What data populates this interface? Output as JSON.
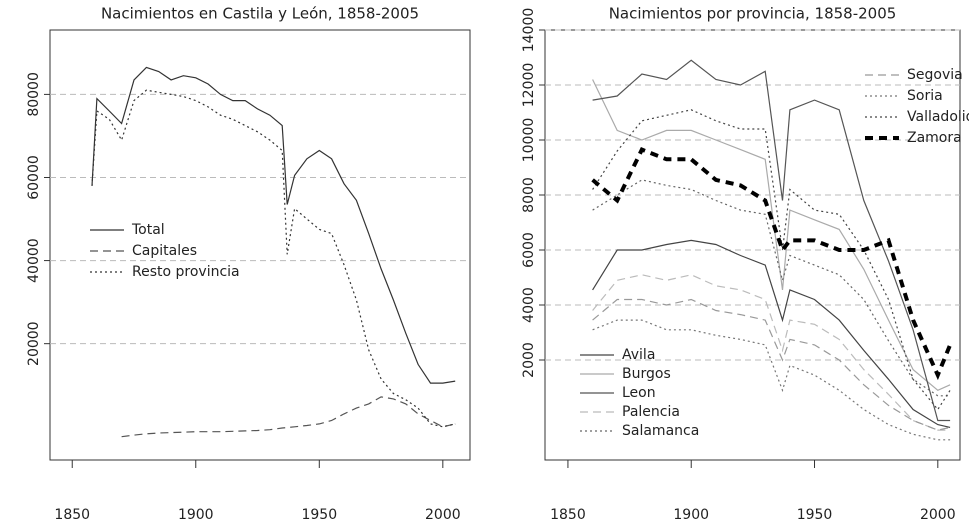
{
  "chart_data": [
    {
      "type": "line",
      "title": "Nacimientos en Castila y León, 1858-2005",
      "x": [
        1858,
        1860,
        1865,
        1870,
        1875,
        1880,
        1885,
        1890,
        1895,
        1900,
        1905,
        1910,
        1915,
        1920,
        1925,
        1930,
        1935,
        1937,
        1940,
        1945,
        1950,
        1955,
        1960,
        1965,
        1970,
        1975,
        1980,
        1985,
        1990,
        1995,
        2000,
        2005
      ],
      "xlim": [
        1841,
        2011
      ],
      "xticks": [
        1850,
        1900,
        1950,
        2000
      ],
      "ylim": [
        -8000,
        95500
      ],
      "yticks": [
        20000,
        40000,
        60000,
        80000
      ],
      "grid": true,
      "legend": "center-left",
      "series": [
        {
          "name": "Total",
          "color": "#333333",
          "style": "solid",
          "values": [
            58000,
            79000,
            76000,
            73000,
            83500,
            86500,
            85500,
            83500,
            84500,
            84000,
            82500,
            80000,
            78500,
            78500,
            76500,
            75000,
            72500,
            53500,
            60500,
            64500,
            66500,
            64500,
            58500,
            54500,
            46500,
            38000,
            30500,
            22500,
            15000,
            10500,
            10500,
            11000
          ]
        },
        {
          "name": "Capitales",
          "color": "#555555",
          "style": "dashed",
          "values": [
            null,
            null,
            null,
            -2400,
            -2000,
            -1700,
            -1500,
            -1400,
            -1300,
            -1200,
            -1200,
            -1200,
            -1100,
            -1000,
            -900,
            -700,
            -300,
            -200,
            0,
            300,
            700,
            1500,
            3100,
            4500,
            5500,
            7200,
            6700,
            5500,
            3100,
            1500,
            0,
            700
          ]
        },
        {
          "name": "Resto provincia",
          "color": "#333333",
          "style": "dotted",
          "values": [
            58000,
            76000,
            74000,
            69000,
            78500,
            81000,
            80500,
            80000,
            79500,
            78500,
            77000,
            75000,
            74000,
            72500,
            71000,
            69000,
            66500,
            41500,
            52500,
            50000,
            47500,
            46500,
            39000,
            30500,
            18500,
            11500,
            8000,
            6500,
            4500,
            700,
            0,
            700
          ]
        }
      ]
    },
    {
      "type": "line",
      "title": "Nacimientos por provincia, 1858-2005",
      "x": [
        1860,
        1870,
        1880,
        1890,
        1900,
        1910,
        1920,
        1930,
        1937,
        1940,
        1950,
        1960,
        1970,
        1980,
        1990,
        2000,
        2005
      ],
      "xlim": [
        1840.7,
        2009
      ],
      "xticks": [
        1850,
        1900,
        1950,
        2000
      ],
      "ylim": [
        -1636,
        14000
      ],
      "yticks": [
        2000,
        4000,
        6000,
        8000,
        10000,
        12000,
        14000
      ],
      "grid": true,
      "series": [
        {
          "name": "Avila",
          "color": "#444444",
          "style": "solid",
          "legend": "bottom-left",
          "values": [
            4550,
            6000,
            6000,
            6200,
            6350,
            6200,
            5800,
            5450,
            3450,
            4550,
            4200,
            3450,
            2350,
            1300,
            200,
            -350,
            -450
          ]
        },
        {
          "name": "Burgos",
          "color": "#aaaaaa",
          "style": "solid",
          "legend": "bottom-left",
          "values": [
            12200,
            10350,
            10000,
            10350,
            10350,
            10000,
            9650,
            9300,
            4550,
            7450,
            7100,
            6750,
            5300,
            3450,
            1650,
            900,
            1100
          ]
        },
        {
          "name": "Leon",
          "color": "#555555",
          "style": "solid",
          "legend": "bottom-left",
          "values": [
            11450,
            11600,
            12400,
            12200,
            12900,
            12200,
            12000,
            12500,
            7800,
            11100,
            11450,
            11100,
            7800,
            5600,
            3100,
            -200,
            -200
          ]
        },
        {
          "name": "Palencia",
          "color": "#bbbbbb",
          "style": "dashed",
          "legend": "bottom-left",
          "values": [
            3800,
            4900,
            5100,
            4900,
            5100,
            4700,
            4550,
            4200,
            2350,
            3450,
            3300,
            2750,
            1650,
            750,
            -200,
            -550,
            -550
          ]
        },
        {
          "name": "Salamanca",
          "color": "#666666",
          "style": "dotted",
          "legend": "bottom-left",
          "values": [
            7450,
            8000,
            8550,
            8350,
            8200,
            7800,
            7450,
            7300,
            4900,
            5800,
            5450,
            5100,
            4200,
            2700,
            1300,
            700,
            700
          ]
        },
        {
          "name": "Segovia",
          "color": "#999999",
          "style": "dashed",
          "legend": "top-right",
          "values": [
            3450,
            4200,
            4200,
            4000,
            4200,
            3800,
            3650,
            3450,
            2000,
            2750,
            2550,
            2000,
            1100,
            350,
            -200,
            -550,
            -450
          ]
        },
        {
          "name": "Soria",
          "color": "#777777",
          "style": "dotted",
          "legend": "top-right",
          "values": [
            3100,
            3450,
            3450,
            3100,
            3100,
            2900,
            2750,
            2550,
            900,
            1800,
            1450,
            900,
            200,
            -350,
            -700,
            -900,
            -900
          ]
        },
        {
          "name": "Valladolid",
          "color": "#444444",
          "style": "dotted",
          "legend": "top-right",
          "values": [
            8200,
            9600,
            10700,
            10900,
            11100,
            10700,
            10400,
            10400,
            6000,
            8200,
            7450,
            7300,
            6000,
            4200,
            1300,
            200,
            900
          ]
        },
        {
          "name": "Zamora",
          "color": "#000000",
          "style": "thick-dashed",
          "legend": "top-right",
          "values": [
            8550,
            7800,
            9650,
            9300,
            9300,
            8550,
            8350,
            7800,
            6000,
            6350,
            6350,
            6000,
            6000,
            6350,
            3450,
            1450,
            2550
          ]
        }
      ]
    }
  ]
}
